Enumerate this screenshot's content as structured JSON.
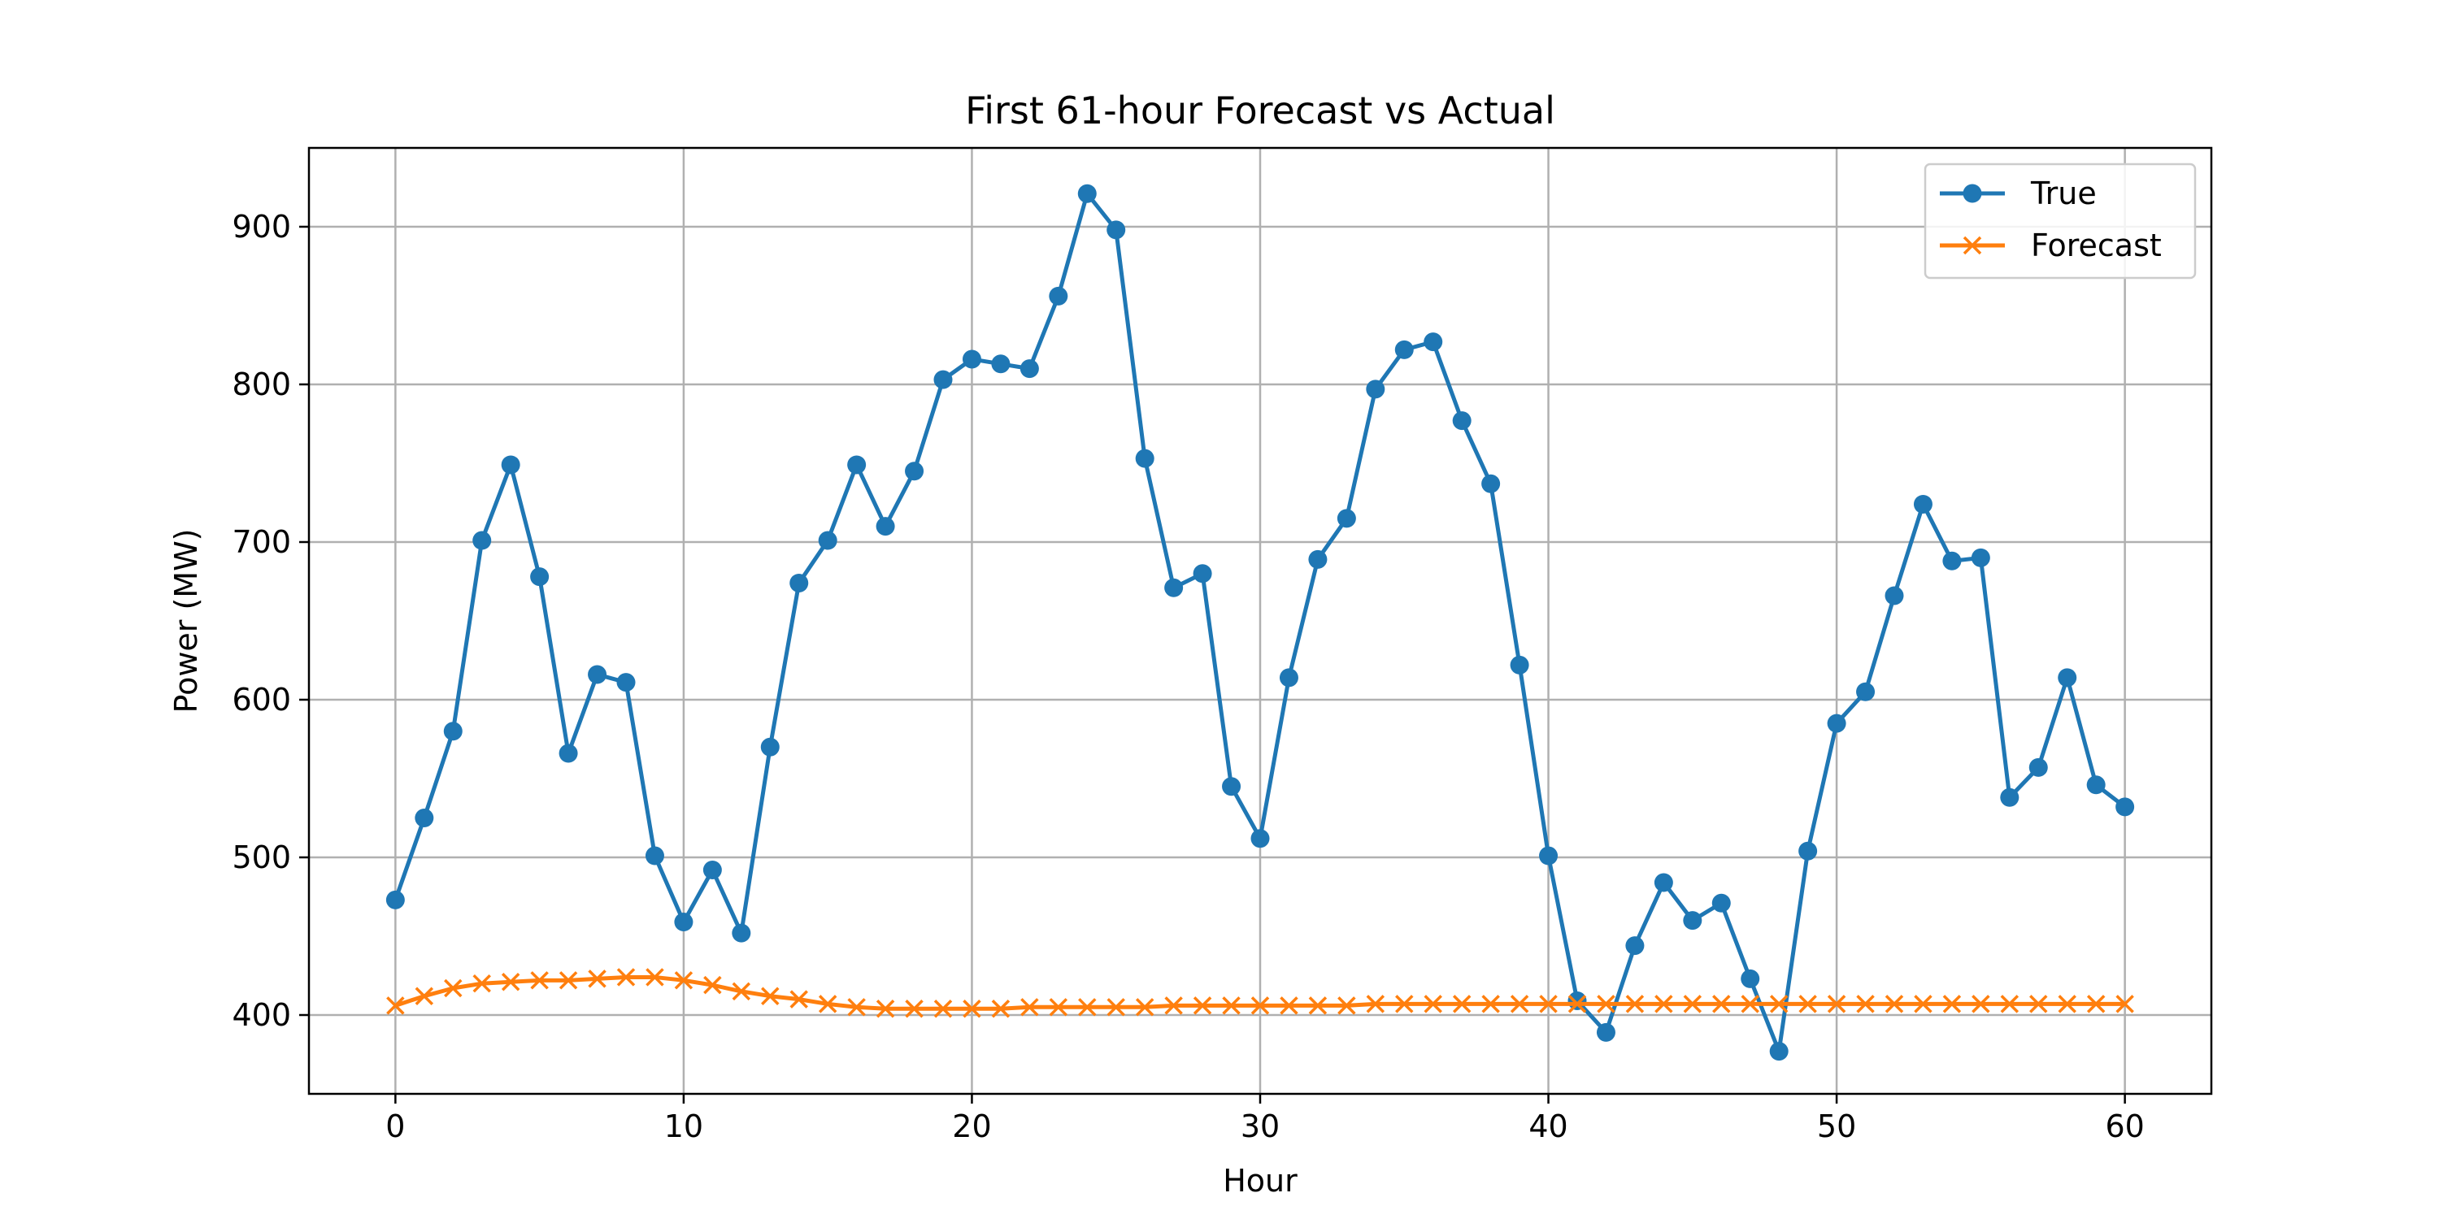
{
  "chart_data": {
    "type": "line",
    "title": "First 61-hour Forecast vs Actual",
    "xlabel": "Hour",
    "ylabel": "Power (MW)",
    "xlim": [
      -3,
      63
    ],
    "ylim": [
      350,
      950
    ],
    "x_ticks": [
      0,
      10,
      20,
      30,
      40,
      50,
      60
    ],
    "y_ticks": [
      400,
      500,
      600,
      700,
      800,
      900
    ],
    "grid": true,
    "legend_position": "top-right",
    "x": [
      0,
      1,
      2,
      3,
      4,
      5,
      6,
      7,
      8,
      9,
      10,
      11,
      12,
      13,
      14,
      15,
      16,
      17,
      18,
      19,
      20,
      21,
      22,
      23,
      24,
      25,
      26,
      27,
      28,
      29,
      30,
      31,
      32,
      33,
      34,
      35,
      36,
      37,
      38,
      39,
      40,
      41,
      42,
      43,
      44,
      45,
      46,
      47,
      48,
      49,
      50,
      51,
      52,
      53,
      54,
      55,
      56,
      57,
      58,
      59,
      60
    ],
    "series": [
      {
        "name": "True",
        "color": "#1f77b4",
        "marker": "circle",
        "values": [
          473,
          525,
          580,
          701,
          749,
          678,
          566,
          616,
          611,
          501,
          459,
          492,
          452,
          570,
          674,
          701,
          749,
          710,
          745,
          803,
          816,
          813,
          810,
          856,
          921,
          898,
          753,
          671,
          680,
          545,
          512,
          614,
          689,
          715,
          797,
          822,
          827,
          777,
          737,
          622,
          501,
          409,
          389,
          444,
          484,
          460,
          471,
          423,
          377,
          504,
          585,
          605,
          666,
          724,
          688,
          690,
          538,
          557,
          614,
          546,
          532
        ]
      },
      {
        "name": "Forecast",
        "color": "#ff7f0e",
        "marker": "x",
        "values": [
          406,
          412,
          417,
          420,
          421,
          422,
          422,
          423,
          424,
          424,
          422,
          419,
          415,
          412,
          410,
          407,
          405,
          404,
          404,
          404,
          404,
          404,
          405,
          405,
          405,
          405,
          405,
          406,
          406,
          406,
          406,
          406,
          406,
          406,
          407,
          407,
          407,
          407,
          407,
          407,
          407,
          407,
          407,
          407,
          407,
          407,
          407,
          407,
          407,
          407,
          407,
          407,
          407,
          407,
          407,
          407,
          407,
          407,
          407,
          407,
          407
        ]
      }
    ]
  }
}
